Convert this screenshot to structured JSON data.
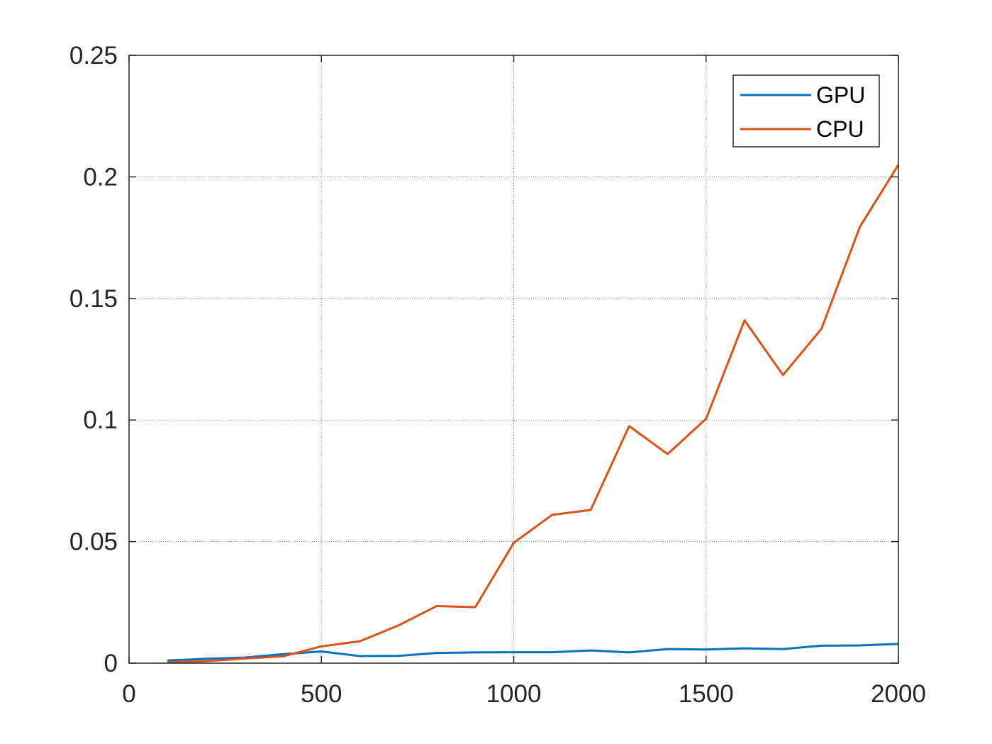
{
  "chart_data": {
    "type": "line",
    "title": "",
    "xlabel": "",
    "ylabel": "",
    "xlim": [
      0,
      2000
    ],
    "ylim": [
      0,
      0.25
    ],
    "xticks": [
      0,
      500,
      1000,
      1500,
      2000
    ],
    "yticks": [
      0,
      0.05,
      0.1,
      0.15,
      0.2,
      0.25
    ],
    "xtick_labels": [
      "0",
      "500",
      "1000",
      "1500",
      "2000"
    ],
    "ytick_labels": [
      "0",
      "0.05",
      "0.1",
      "0.15",
      "0.2",
      "0.25"
    ],
    "grid": true,
    "legend_position": "top-right",
    "x": [
      100,
      200,
      300,
      400,
      500,
      600,
      700,
      800,
      900,
      1000,
      1100,
      1200,
      1300,
      1400,
      1500,
      1600,
      1700,
      1800,
      1900,
      2000
    ],
    "series": [
      {
        "name": "GPU",
        "color": "#0072BD",
        "values": [
          0.0011,
          0.0018,
          0.0023,
          0.0037,
          0.0048,
          0.0029,
          0.003,
          0.0042,
          0.0044,
          0.0045,
          0.0045,
          0.0052,
          0.0044,
          0.0058,
          0.0056,
          0.0061,
          0.0058,
          0.0072,
          0.0073,
          0.0079
        ]
      },
      {
        "name": "CPU",
        "color": "#D95319",
        "values": [
          0.0003,
          0.0008,
          0.0019,
          0.0028,
          0.0069,
          0.009,
          0.0155,
          0.0235,
          0.023,
          0.0495,
          0.061,
          0.063,
          0.0975,
          0.086,
          0.1005,
          0.141,
          0.1185,
          0.1375,
          0.1795,
          0.205
        ]
      }
    ]
  }
}
